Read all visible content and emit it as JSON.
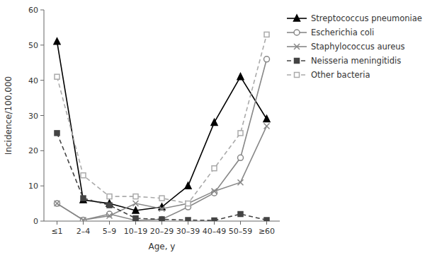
{
  "chart_data": {
    "type": "line",
    "categories": [
      "≤1",
      "2–4",
      "5–9",
      "10–19",
      "20–29",
      "30–39",
      "40–49",
      "50–59",
      "≥60"
    ],
    "series": [
      {
        "name": "Streptococcus pneumoniae",
        "color": "#000000",
        "marker": "triangle",
        "line_style": "solid",
        "values": [
          51,
          6,
          5,
          3,
          4,
          10,
          28,
          41,
          29
        ]
      },
      {
        "name": "Escherichia coli",
        "color": "#888888",
        "marker": "circle-open",
        "line_style": "solid",
        "values": [
          5,
          0.3,
          2,
          0.2,
          0.5,
          4,
          8,
          18,
          46
        ]
      },
      {
        "name": "Staphylococcus aureus",
        "color": "#888888",
        "marker": "x",
        "line_style": "solid",
        "values": [
          5,
          0.3,
          1.5,
          5,
          3.5,
          5,
          8.5,
          11,
          27
        ]
      },
      {
        "name": "Neisseria meningitidis",
        "color": "#444444",
        "marker": "square",
        "line_style": "dashed",
        "values": [
          25,
          6.5,
          4.5,
          0.8,
          0.5,
          0.3,
          0.2,
          2,
          0.3
        ]
      },
      {
        "name": "Other bacteria",
        "color": "#aaaaaa",
        "marker": "square-open",
        "line_style": "dashed",
        "values": [
          41,
          13,
          7,
          7,
          6.5,
          5,
          15,
          25,
          53
        ]
      }
    ],
    "xlabel": "Age, y",
    "ylabel": "Incidence/100,000",
    "ylim": [
      0,
      60
    ],
    "yticks": [
      0,
      10,
      20,
      30,
      40,
      50,
      60
    ],
    "grid": false,
    "legend": "upper right"
  }
}
